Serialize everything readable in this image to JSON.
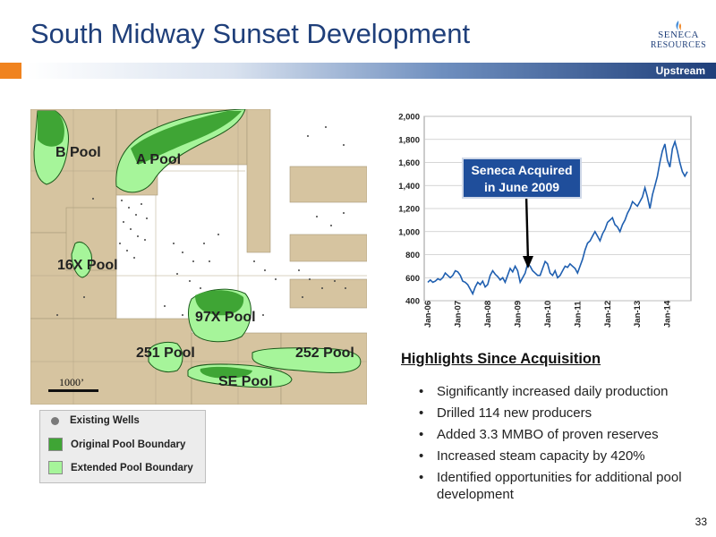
{
  "title": "South Midway Sunset Development",
  "logo": {
    "name": "SENECA",
    "sub": "RESOURCES"
  },
  "header_bar": {
    "label": "Upstream"
  },
  "map": {
    "pools": [
      "B Pool",
      "A Pool",
      "16X Pool",
      "97X Pool",
      "251 Pool",
      "252 Pool",
      "SE Pool"
    ],
    "scale": "1000’",
    "legend": {
      "existing_wells": "Existing Wells",
      "original": "Original Pool Boundary",
      "extended": "Extended Pool Boundary"
    },
    "colors": {
      "land": "#d6c4a0",
      "original": "#3fa535",
      "extended": "#a6f59a",
      "well": "#555555"
    }
  },
  "chart_data": {
    "type": "line",
    "x_ticks": [
      "Jan-06",
      "Jan-07",
      "Jan-08",
      "Jan-09",
      "Jan-10",
      "Jan-11",
      "Jan-12",
      "Jan-13",
      "Jan-14"
    ],
    "y_ticks": [
      "2,000",
      "1,800",
      "1,600",
      "1,400",
      "1,200",
      "1,000",
      "800",
      "600",
      "400"
    ],
    "ylim": [
      400,
      2000
    ],
    "x_start": "Jan-06",
    "series_color": "#1f5fb0",
    "values": [
      560,
      580,
      560,
      570,
      590,
      580,
      600,
      640,
      620,
      600,
      620,
      660,
      650,
      620,
      570,
      560,
      540,
      500,
      460,
      520,
      560,
      540,
      570,
      520,
      540,
      620,
      660,
      630,
      610,
      580,
      600,
      560,
      620,
      680,
      650,
      700,
      660,
      560,
      600,
      640,
      720,
      700,
      660,
      640,
      620,
      620,
      680,
      740,
      720,
      640,
      620,
      660,
      600,
      620,
      660,
      700,
      690,
      720,
      700,
      680,
      640,
      700,
      760,
      840,
      900,
      920,
      960,
      1000,
      960,
      920,
      980,
      1020,
      1080,
      1100,
      1120,
      1060,
      1040,
      1000,
      1060,
      1100,
      1160,
      1200,
      1260,
      1240,
      1220,
      1260,
      1300,
      1380,
      1300,
      1200,
      1320,
      1400,
      1480,
      1600,
      1700,
      1760,
      1620,
      1560,
      1720,
      1780,
      1700,
      1600,
      1520,
      1480,
      1520
    ]
  },
  "callout": {
    "line1": "Seneca Acquired",
    "line2": "in June 2009"
  },
  "highlights": {
    "title": "Highlights Since Acquisition",
    "items": [
      "Significantly increased daily production",
      "Drilled 114 new producers",
      "Added 3.3 MMBO of proven reserves",
      "Increased steam capacity by 420%",
      "Identified opportunities for additional pool development"
    ]
  },
  "page_number": "33"
}
